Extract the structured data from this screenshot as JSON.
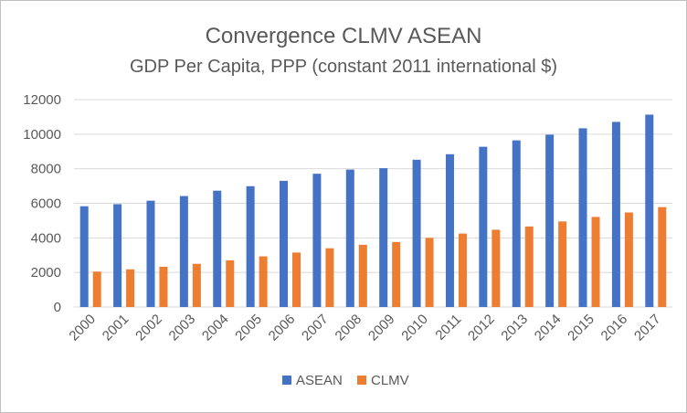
{
  "chart_data": {
    "type": "bar",
    "title": "Convergence CLMV ASEAN",
    "subtitle": "GDP Per Capita, PPP (constant 2011 international $)",
    "xlabel": "",
    "ylabel": "",
    "ylim": [
      0,
      12000
    ],
    "yticks": [
      0,
      2000,
      4000,
      6000,
      8000,
      10000,
      12000
    ],
    "grid": true,
    "legend_position": "bottom",
    "categories": [
      "2000",
      "2001",
      "2002",
      "2003",
      "2004",
      "2005",
      "2006",
      "2007",
      "2008",
      "2009",
      "2010",
      "2011",
      "2012",
      "2013",
      "2014",
      "2015",
      "2016",
      "2017"
    ],
    "series": [
      {
        "name": "ASEAN",
        "color": "#4472c4",
        "values": [
          5830,
          5950,
          6150,
          6420,
          6730,
          6990,
          7300,
          7710,
          7950,
          8030,
          8520,
          8840,
          9270,
          9640,
          9970,
          10340,
          10710,
          11130
        ]
      },
      {
        "name": "CLMV",
        "color": "#ed7d31",
        "values": [
          2050,
          2180,
          2330,
          2500,
          2700,
          2930,
          3150,
          3400,
          3600,
          3760,
          4000,
          4250,
          4470,
          4660,
          4950,
          5210,
          5470,
          5780
        ]
      }
    ]
  }
}
